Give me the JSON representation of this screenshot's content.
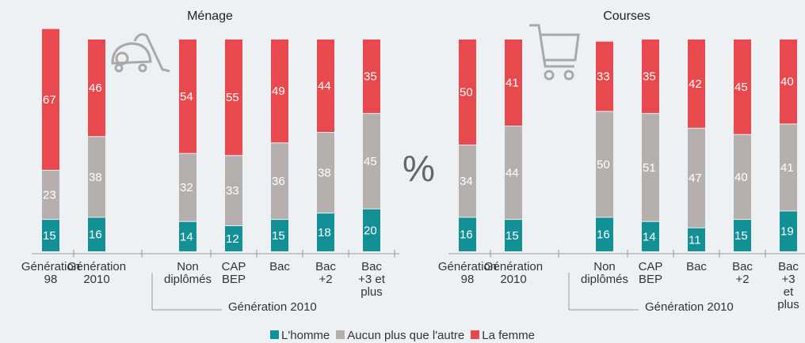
{
  "unit_symbol": "%",
  "chart_data": [
    {
      "type": "bar",
      "stacked": true,
      "title": "Ménage",
      "group_label": "Génération 2010",
      "categories": [
        "Génération\n98",
        "Génération\n2010",
        "Non\ndiplômés",
        "CAP\nBEP",
        "Bac",
        "Bac\n+2",
        "Bac\n+3 et\nplus"
      ],
      "series": [
        {
          "name": "L'homme",
          "color": "#138f96",
          "values": [
            15,
            16,
            14,
            12,
            15,
            18,
            20
          ]
        },
        {
          "name": "Aucun plus que l'autre",
          "color": "#b5b0ae",
          "values": [
            23,
            38,
            32,
            33,
            36,
            38,
            45
          ]
        },
        {
          "name": "La femme",
          "color": "#e8494e",
          "values": [
            67,
            46,
            54,
            55,
            49,
            44,
            35
          ]
        }
      ]
    },
    {
      "type": "bar",
      "stacked": true,
      "title": "Courses",
      "group_label": "Génération 2010",
      "categories": [
        "Génération\n98",
        "Génération\n2010",
        "Non\ndiplômés",
        "CAP\nBEP",
        "Bac",
        "Bac\n+2",
        "Bac\n+3 et\nplus"
      ],
      "series": [
        {
          "color": "#138f96",
          "values": [
            16,
            15,
            16,
            14,
            11,
            15,
            19
          ]
        },
        {
          "color": "#b5b0ae",
          "values": [
            34,
            44,
            50,
            51,
            47,
            40,
            41
          ]
        },
        {
          "color": "#e8494e",
          "values": [
            50,
            41,
            33,
            35,
            42,
            45,
            40
          ]
        }
      ]
    }
  ]
}
